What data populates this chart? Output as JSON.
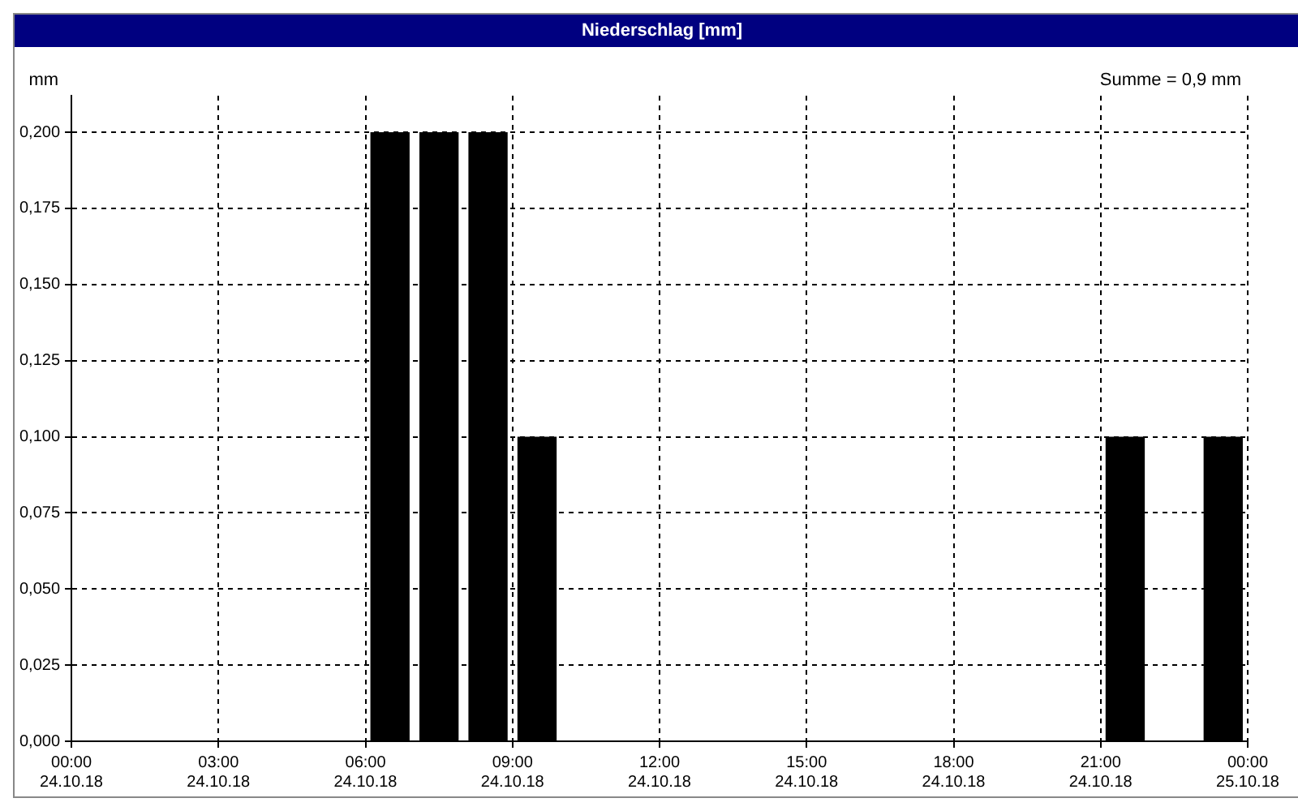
{
  "chart_data": {
    "type": "bar",
    "title": "Niederschlag [mm]",
    "ylabel": "mm",
    "annotations": [
      "Summe = 0,9 mm"
    ],
    "x": [
      "--10-24T06:30",
      "--10-24T07:30",
      "--10-24T08:30",
      "--10-24T09:30",
      "--10-24T21:30",
      "--10-24T23:30"
    ],
    "series": [
      {
        "color": "#000000",
        "values": [
          0.2,
          0.2,
          0.2,
          0.1,
          0.1,
          0.1
        ]
      }
    ],
    "xlim": [
      "--10-24T00:00",
      "--10-25T00:00"
    ],
    "xticks": [
      {
        "value": "--10-24T00:00",
        "label": "00:00\n24.10.18"
      },
      {
        "value": "--10-24T03:00",
        "label": "03:00\n24.10.18"
      },
      {
        "value": "--10-24T06:00",
        "label": "06:00\n24.10.18"
      },
      {
        "value": "--10-24T09:00",
        "label": "09:00\n24.10.18"
      },
      {
        "value": "--10-24T12:00",
        "label": "12:00\n24.10.18"
      },
      {
        "value": "--10-24T15:00",
        "label": "15:00\n24.10.18"
      },
      {
        "value": "--10-24T18:00",
        "label": "18:00\n24.10.18"
      },
      {
        "value": "--10-24T21:00",
        "label": "21:00\n24.10.18"
      },
      {
        "value": "--10-25T00:00",
        "label": "00:00\n25.10.18"
      }
    ],
    "ylim": [
      0,
      0.212
    ],
    "yticks": [
      {
        "value": 0,
        "label": "0,000"
      },
      {
        "value": 0.025,
        "label": "0,025"
      },
      {
        "value": 0.05,
        "label": "0,050"
      },
      {
        "value": 0.075,
        "label": "0,075"
      },
      {
        "value": 0.1,
        "label": "0,100"
      },
      {
        "value": 0.125,
        "label": "0,125"
      },
      {
        "value": 0.15,
        "label": "0,150"
      },
      {
        "value": 0.175,
        "label": "0,175"
      },
      {
        "value": 0.2,
        "label": "0,200"
      }
    ],
    "grid": true,
    "line_style": "dashed",
    "legend": false
  }
}
